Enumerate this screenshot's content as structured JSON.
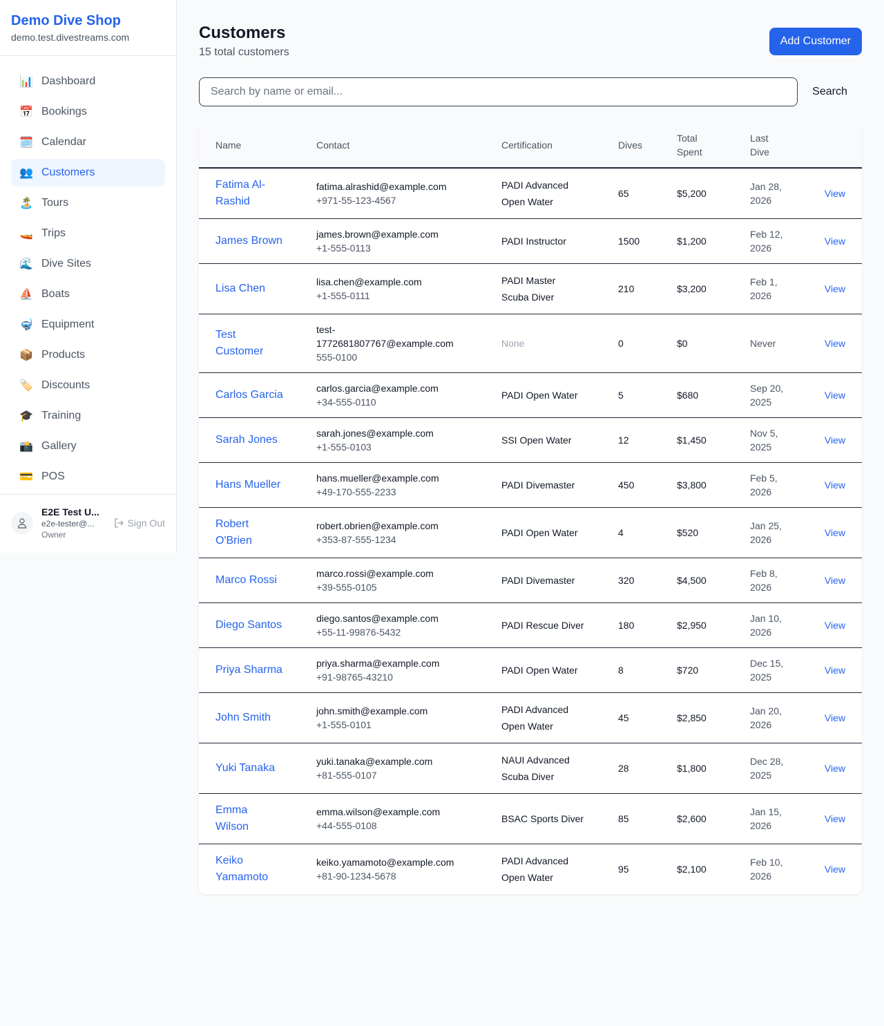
{
  "sidebar": {
    "brand": "Demo Dive Shop",
    "domain": "demo.test.divestreams.com",
    "items": [
      {
        "label": "Dashboard",
        "icon": "📊"
      },
      {
        "label": "Bookings",
        "icon": "📅"
      },
      {
        "label": "Calendar",
        "icon": "🗓️"
      },
      {
        "label": "Customers",
        "icon": "👥",
        "active": true
      },
      {
        "label": "Tours",
        "icon": "🏝️"
      },
      {
        "label": "Trips",
        "icon": "🚤"
      },
      {
        "label": "Dive Sites",
        "icon": "🌊"
      },
      {
        "label": "Boats",
        "icon": "⛵"
      },
      {
        "label": "Equipment",
        "icon": "🤿"
      },
      {
        "label": "Products",
        "icon": "📦"
      },
      {
        "label": "Discounts",
        "icon": "🏷️"
      },
      {
        "label": "Training",
        "icon": "🎓"
      },
      {
        "label": "Gallery",
        "icon": "📸"
      },
      {
        "label": "POS",
        "icon": "💳"
      }
    ],
    "user": {
      "name": "E2E Test U...",
      "email": "e2e-tester@...",
      "role": "Owner",
      "sign_out": "Sign Out"
    }
  },
  "header": {
    "title": "Customers",
    "subtitle": "15 total customers",
    "add_button": "Add Customer"
  },
  "search": {
    "placeholder": "Search by name or email...",
    "value": "",
    "button": "Search"
  },
  "table": {
    "columns": [
      "Name",
      "Contact",
      "Certification",
      "Dives",
      "Total Spent",
      "Last Dive",
      ""
    ],
    "view_label": "View",
    "rows": [
      {
        "name": "Fatima Al-Rashid",
        "email": "fatima.alrashid@example.com",
        "phone": "+971-55-123-4567",
        "cert": "PADI Advanced Open Water",
        "dives": "65",
        "spent": "$5,200",
        "last": "Jan 28, 2026"
      },
      {
        "name": "James Brown",
        "email": "james.brown@example.com",
        "phone": "+1-555-0113",
        "cert": "PADI Instructor",
        "dives": "1500",
        "spent": "$1,200",
        "last": "Feb 12, 2026"
      },
      {
        "name": "Lisa Chen",
        "email": "lisa.chen@example.com",
        "phone": "+1-555-0111",
        "cert": "PADI Master Scuba Diver",
        "dives": "210",
        "spent": "$3,200",
        "last": "Feb 1, 2026"
      },
      {
        "name": "Test Customer",
        "email": "test-1772681807767@example.com",
        "phone": "555-0100",
        "cert": "None",
        "dives": "0",
        "spent": "$0",
        "last": "Never"
      },
      {
        "name": "Carlos Garcia",
        "email": "carlos.garcia@example.com",
        "phone": "+34-555-0110",
        "cert": "PADI Open Water",
        "dives": "5",
        "spent": "$680",
        "last": "Sep 20, 2025"
      },
      {
        "name": "Sarah Jones",
        "email": "sarah.jones@example.com",
        "phone": "+1-555-0103",
        "cert": "SSI Open Water",
        "dives": "12",
        "spent": "$1,450",
        "last": "Nov 5, 2025"
      },
      {
        "name": "Hans Mueller",
        "email": "hans.mueller@example.com",
        "phone": "+49-170-555-2233",
        "cert": "PADI Divemaster",
        "dives": "450",
        "spent": "$3,800",
        "last": "Feb 5, 2026"
      },
      {
        "name": "Robert O'Brien",
        "email": "robert.obrien@example.com",
        "phone": "+353-87-555-1234",
        "cert": "PADI Open Water",
        "dives": "4",
        "spent": "$520",
        "last": "Jan 25, 2026"
      },
      {
        "name": "Marco Rossi",
        "email": "marco.rossi@example.com",
        "phone": "+39-555-0105",
        "cert": "PADI Divemaster",
        "dives": "320",
        "spent": "$4,500",
        "last": "Feb 8, 2026"
      },
      {
        "name": "Diego Santos",
        "email": "diego.santos@example.com",
        "phone": "+55-11-99876-5432",
        "cert": "PADI Rescue Diver",
        "dives": "180",
        "spent": "$2,950",
        "last": "Jan 10, 2026"
      },
      {
        "name": "Priya Sharma",
        "email": "priya.sharma@example.com",
        "phone": "+91-98765-43210",
        "cert": "PADI Open Water",
        "dives": "8",
        "spent": "$720",
        "last": "Dec 15, 2025"
      },
      {
        "name": "John Smith",
        "email": "john.smith@example.com",
        "phone": "+1-555-0101",
        "cert": "PADI Advanced Open Water",
        "dives": "45",
        "spent": "$2,850",
        "last": "Jan 20, 2026"
      },
      {
        "name": "Yuki Tanaka",
        "email": "yuki.tanaka@example.com",
        "phone": "+81-555-0107",
        "cert": "NAUI Advanced Scuba Diver",
        "dives": "28",
        "spent": "$1,800",
        "last": "Dec 28, 2025"
      },
      {
        "name": "Emma Wilson",
        "email": "emma.wilson@example.com",
        "phone": "+44-555-0108",
        "cert": "BSAC Sports Diver",
        "dives": "85",
        "spent": "$2,600",
        "last": "Jan 15, 2026"
      },
      {
        "name": "Keiko Yamamoto",
        "email": "keiko.yamamoto@example.com",
        "phone": "+81-90-1234-5678",
        "cert": "PADI Advanced Open Water",
        "dives": "95",
        "spent": "$2,100",
        "last": "Feb 10, 2026"
      }
    ]
  },
  "colors": {
    "accent": "#2563eb",
    "active_bg": "#eff6ff"
  }
}
